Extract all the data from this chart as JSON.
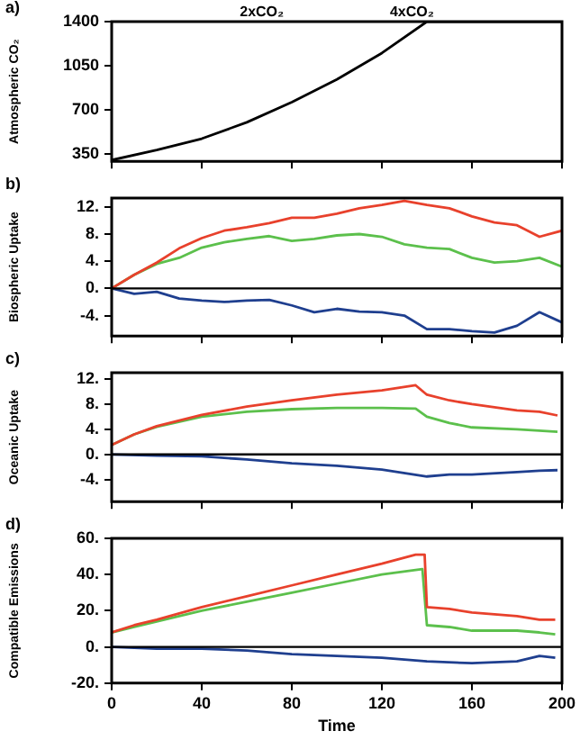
{
  "chart_data": [
    {
      "type": "line",
      "title": "a)",
      "ylabel": "Atmospheric CO₂",
      "xlim": [
        0,
        200
      ],
      "xticks": [
        0,
        40,
        80,
        120,
        160,
        200
      ],
      "ylim": [
        290,
        1400
      ],
      "yticks": [
        350,
        700,
        1050,
        1400
      ],
      "tick_labels": "y",
      "grid": false,
      "legend": false,
      "marker": "none",
      "line_style": "solid",
      "annotations": [
        "2xCO₂",
        "4xCO₂"
      ],
      "series": [
        {
          "color": "#000000",
          "x": [
            0,
            20,
            40,
            60,
            80,
            100,
            120,
            140,
            200
          ],
          "values": [
            300,
            380,
            470,
            600,
            760,
            940,
            1150,
            1400,
            1400
          ]
        }
      ]
    },
    {
      "type": "line",
      "title": "b)",
      "ylabel": "Biospheric Uptake",
      "xlim": [
        0,
        200
      ],
      "xticks": [
        0,
        40,
        80,
        120,
        160,
        200
      ],
      "ylim": [
        -7,
        13.3
      ],
      "yticks": [
        {
          "value": 12,
          "label": "12."
        },
        {
          "value": 8,
          "label": "8."
        },
        {
          "value": 4,
          "label": "4."
        },
        {
          "value": 0,
          "label": "0."
        },
        {
          "value": -4,
          "label": "-4."
        }
      ],
      "tick_labels": "y",
      "grid": false,
      "legend": false,
      "marker": "none",
      "line_style": "solid",
      "ref_lines": [
        {
          "axis": "y",
          "value": 0,
          "color": "#000000"
        }
      ],
      "series": [
        {
          "color": "#e8412c",
          "x": [
            0,
            10,
            20,
            30,
            40,
            50,
            60,
            70,
            80,
            90,
            100,
            110,
            120,
            130,
            140,
            150,
            160,
            170,
            180,
            190,
            200
          ],
          "values": [
            0,
            2,
            3.8,
            5.9,
            7.4,
            8.5,
            9,
            9.6,
            10.4,
            10.4,
            11,
            11.8,
            12.3,
            12.9,
            12.3,
            11.8,
            10.6,
            9.7,
            9.3,
            7.6,
            8.5
          ]
        },
        {
          "color": "#5cc04c",
          "x": [
            0,
            10,
            20,
            30,
            40,
            50,
            60,
            70,
            80,
            90,
            100,
            110,
            120,
            130,
            140,
            150,
            160,
            170,
            180,
            190,
            200
          ],
          "values": [
            0,
            2,
            3.6,
            4.5,
            6,
            6.8,
            7.3,
            7.7,
            7,
            7.3,
            7.8,
            8,
            7.6,
            6.5,
            6,
            5.8,
            4.5,
            3.8,
            4,
            4.5,
            3.2
          ]
        },
        {
          "color": "#1f3f8f",
          "x": [
            0,
            10,
            20,
            30,
            40,
            50,
            60,
            70,
            80,
            90,
            100,
            110,
            120,
            130,
            140,
            150,
            160,
            170,
            180,
            190,
            200
          ],
          "values": [
            0,
            -0.8,
            -0.5,
            -1.5,
            -1.8,
            -2,
            -1.8,
            -1.7,
            -2.5,
            -3.5,
            -3,
            -3.4,
            -3.5,
            -4,
            -6,
            -6,
            -6.3,
            -6.5,
            -5.5,
            -3.5,
            -5
          ]
        }
      ]
    },
    {
      "type": "line",
      "title": "c)",
      "ylabel": "Oceanic Uptake",
      "xlim": [
        0,
        200
      ],
      "xticks": [
        0,
        40,
        80,
        120,
        160,
        200
      ],
      "ylim": [
        -7.5,
        13
      ],
      "yticks": [
        {
          "value": 12,
          "label": "12."
        },
        {
          "value": 8,
          "label": "8."
        },
        {
          "value": 4,
          "label": "4."
        },
        {
          "value": 0,
          "label": "0."
        },
        {
          "value": -4,
          "label": "-4."
        }
      ],
      "tick_labels": "y",
      "grid": false,
      "legend": false,
      "marker": "none",
      "line_style": "solid",
      "ref_lines": [
        {
          "axis": "y",
          "value": 0,
          "color": "#000000"
        }
      ],
      "series": [
        {
          "color": "#e8412c",
          "x": [
            0,
            10,
            20,
            40,
            60,
            80,
            100,
            120,
            135,
            140,
            150,
            160,
            170,
            180,
            190,
            198
          ],
          "values": [
            1.5,
            3.2,
            4.5,
            6.3,
            7.6,
            8.6,
            9.5,
            10.2,
            11,
            9.5,
            8.6,
            8,
            7.5,
            7,
            6.8,
            6.2
          ]
        },
        {
          "color": "#5cc04c",
          "x": [
            0,
            10,
            20,
            40,
            60,
            80,
            100,
            120,
            135,
            140,
            150,
            160,
            180,
            198
          ],
          "values": [
            1.5,
            3.2,
            4.4,
            6,
            6.8,
            7.2,
            7.4,
            7.4,
            7.3,
            6,
            5,
            4.3,
            4,
            3.6
          ]
        },
        {
          "color": "#1f3f8f",
          "x": [
            0,
            20,
            40,
            60,
            80,
            100,
            120,
            140,
            150,
            160,
            180,
            190,
            198
          ],
          "values": [
            0,
            -0.2,
            -0.3,
            -0.8,
            -1.4,
            -1.8,
            -2.4,
            -3.5,
            -3.2,
            -3.2,
            -2.8,
            -2.6,
            -2.5
          ]
        }
      ]
    },
    {
      "type": "line",
      "title": "d)",
      "ylabel": "Compatible Emissions",
      "xlabel": "Time",
      "xlim": [
        0,
        200
      ],
      "xticks": [
        0,
        40,
        80,
        120,
        160,
        200
      ],
      "ylim": [
        -20,
        60
      ],
      "yticks": [
        {
          "value": 60,
          "label": "60."
        },
        {
          "value": 40,
          "label": "40."
        },
        {
          "value": 20,
          "label": "20."
        },
        {
          "value": 0,
          "label": "0."
        },
        {
          "value": -20,
          "label": "-20."
        }
      ],
      "grid": false,
      "legend": false,
      "marker": "none",
      "line_style": "solid",
      "ref_lines": [
        {
          "axis": "y",
          "value": 0,
          "color": "#000000"
        }
      ],
      "series": [
        {
          "color": "#e8412c",
          "x": [
            0,
            10,
            20,
            40,
            60,
            80,
            100,
            120,
            135,
            139,
            140,
            150,
            160,
            170,
            180,
            190,
            197
          ],
          "values": [
            8,
            12,
            15,
            22,
            28,
            34,
            40,
            46,
            51,
            51,
            22,
            21,
            19,
            18,
            17,
            15,
            15
          ]
        },
        {
          "color": "#5cc04c",
          "x": [
            0,
            10,
            20,
            40,
            60,
            80,
            100,
            120,
            138,
            140,
            150,
            160,
            170,
            180,
            190,
            197
          ],
          "values": [
            8,
            11,
            14,
            20,
            25,
            30,
            35,
            40,
            43,
            12,
            11,
            9,
            9,
            9,
            8,
            7
          ]
        },
        {
          "color": "#1f3f8f",
          "x": [
            0,
            20,
            40,
            60,
            80,
            100,
            120,
            140,
            160,
            180,
            190,
            197
          ],
          "values": [
            0,
            -1,
            -1,
            -2,
            -4,
            -5,
            -6,
            -8,
            -9,
            -8,
            -5,
            -6
          ]
        }
      ]
    }
  ]
}
